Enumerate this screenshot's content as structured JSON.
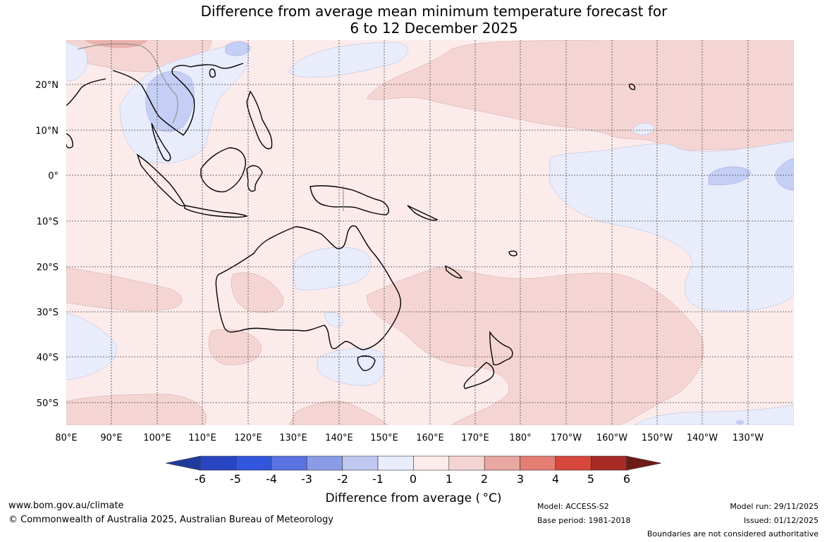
{
  "title_line1": "Difference from average mean minimum temperature forecast for",
  "title_line2": "6 to 12 December 2025",
  "map": {
    "lon_labels": [
      "80°E",
      "90°E",
      "100°E",
      "110°E",
      "120°E",
      "130°E",
      "140°E",
      "150°E",
      "160°E",
      "170°E",
      "180°",
      "170°W",
      "160°W",
      "150°W",
      "140°W",
      "130°W"
    ],
    "lat_labels": [
      "20°N",
      "10°N",
      "0°",
      "10°S",
      "20°S",
      "30°S",
      "40°S",
      "50°S"
    ],
    "colors": {
      "ocean_warm": "#fcebeb",
      "warm_1_2": "#f5d5d3",
      "cool_0_1": "#e8ecfb",
      "cool_1_2": "#c5cef4",
      "warm_2_3": "#eab1ac",
      "coastline": "#000000",
      "borders": "#888888"
    }
  },
  "colorbar": {
    "labels": [
      "-6",
      "-5",
      "-4",
      "-3",
      "-2",
      "-1",
      "0",
      "1",
      "2",
      "3",
      "4",
      "5",
      "6"
    ],
    "colors": [
      "#1f3b9b",
      "#2a45c2",
      "#3155dd",
      "#5a73e2",
      "#8a9ce8",
      "#c0c8f2",
      "#e8ecfb",
      "#fcebeb",
      "#f5d5d3",
      "#e8a7a1",
      "#e47d72",
      "#d8473c",
      "#a82a25",
      "#6e1b18"
    ],
    "title": "Difference from average ( °C)"
  },
  "footer": {
    "website": "www.bom.gov.au/climate",
    "copyright": "© Commonwealth of Australia 2025, Australian Bureau of Meteorology",
    "model": "Model: ACCESS-S2",
    "base_period": "Base period: 1981-2018",
    "model_run": "Model run: 29/11/2025",
    "issued": "Issued: 01/12/2025",
    "disclaimer": "Boundaries are not considered authoritative"
  }
}
